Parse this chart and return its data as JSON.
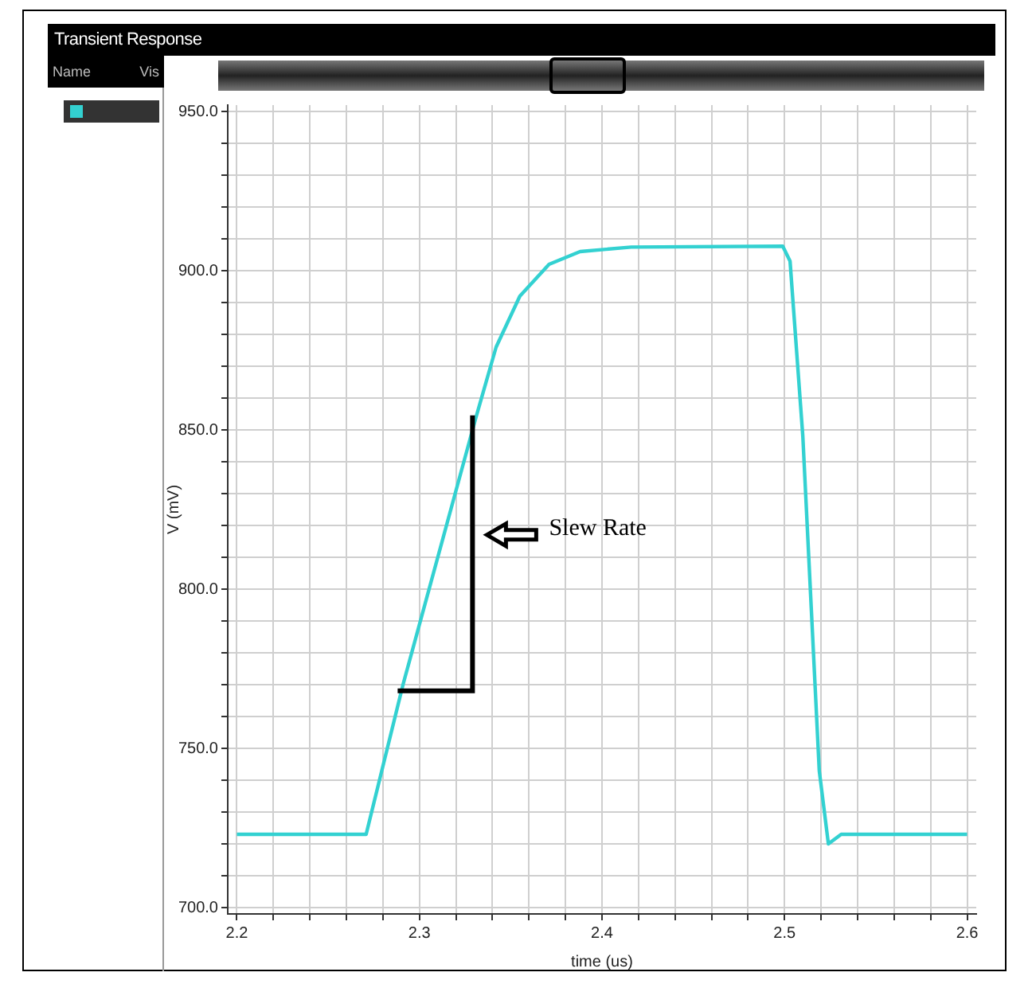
{
  "chart_data": {
    "type": "line",
    "title": "Transient Response",
    "xlabel": "time (us)",
    "ylabel": "V (mV)",
    "x": [
      2.2,
      2.2708,
      2.291,
      2.331,
      2.342,
      2.355,
      2.371,
      2.388,
      2.416,
      2.499,
      2.503,
      2.51,
      2.519,
      2.524,
      2.531,
      2.6
    ],
    "series": [
      {
        "color": "#33d1d1",
        "values": [
          723,
          723,
          770,
          854,
          876,
          892,
          902,
          906,
          907.4,
          907.7,
          903,
          848,
          743,
          720,
          723,
          723
        ]
      }
    ],
    "xlim": [
      2.195,
      2.605
    ],
    "xticks": [
      {
        "value": 2.2,
        "label": "2.2"
      },
      {
        "value": 2.22,
        "label": null
      },
      {
        "value": 2.24,
        "label": null
      },
      {
        "value": 2.26,
        "label": null
      },
      {
        "value": 2.28,
        "label": null
      },
      {
        "value": 2.3,
        "label": "2.3"
      },
      {
        "value": 2.32,
        "label": null
      },
      {
        "value": 2.34,
        "label": null
      },
      {
        "value": 2.36,
        "label": null
      },
      {
        "value": 2.38,
        "label": null
      },
      {
        "value": 2.4,
        "label": "2.4"
      },
      {
        "value": 2.42,
        "label": null
      },
      {
        "value": 2.44,
        "label": null
      },
      {
        "value": 2.46,
        "label": null
      },
      {
        "value": 2.48,
        "label": null
      },
      {
        "value": 2.5,
        "label": "2.5"
      },
      {
        "value": 2.52,
        "label": null
      },
      {
        "value": 2.54,
        "label": null
      },
      {
        "value": 2.56,
        "label": null
      },
      {
        "value": 2.58,
        "label": null
      },
      {
        "value": 2.6,
        "label": "2.6"
      }
    ],
    "ylim": [
      698,
      952
    ],
    "yticks": [
      {
        "value": 700,
        "label": "700.0"
      },
      {
        "value": 710,
        "label": null
      },
      {
        "value": 720,
        "label": null
      },
      {
        "value": 730,
        "label": null
      },
      {
        "value": 740,
        "label": null
      },
      {
        "value": 750,
        "label": "750.0"
      },
      {
        "value": 760,
        "label": null
      },
      {
        "value": 770,
        "label": null
      },
      {
        "value": 780,
        "label": null
      },
      {
        "value": 790,
        "label": null
      },
      {
        "value": 800,
        "label": "800.0"
      },
      {
        "value": 810,
        "label": null
      },
      {
        "value": 820,
        "label": null
      },
      {
        "value": 830,
        "label": null
      },
      {
        "value": 840,
        "label": null
      },
      {
        "value": 850,
        "label": "850.0"
      },
      {
        "value": 860,
        "label": null
      },
      {
        "value": 870,
        "label": null
      },
      {
        "value": 880,
        "label": null
      },
      {
        "value": 890,
        "label": null
      },
      {
        "value": 900,
        "label": "900.0"
      },
      {
        "value": 910,
        "label": null
      },
      {
        "value": 920,
        "label": null
      },
      {
        "value": 930,
        "label": null
      },
      {
        "value": 940,
        "label": null
      },
      {
        "value": 950,
        "label": "950.0"
      }
    ],
    "grid": true,
    "legend": false,
    "marker": "none",
    "line_style": "solid",
    "annotations": [
      "Name",
      "Vis",
      "Slew Rate"
    ]
  }
}
